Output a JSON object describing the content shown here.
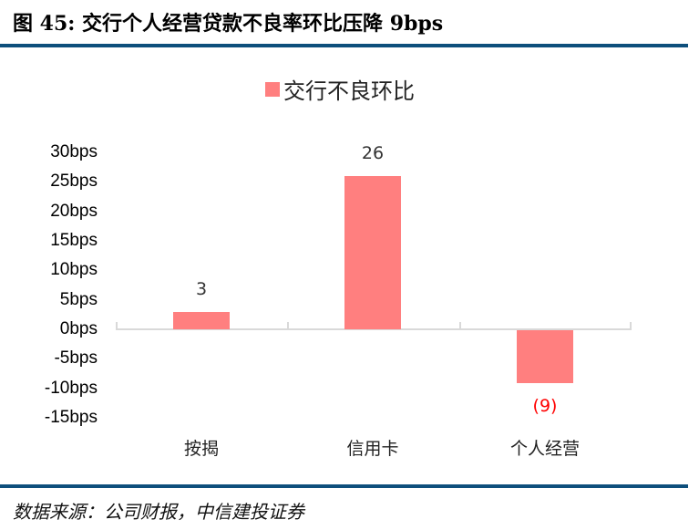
{
  "header": {
    "title": "图 45:  交行个人经营贷款不良率环比压降 9bps"
  },
  "legend": {
    "label": "交行不良环比",
    "color": "#ff7f7f"
  },
  "footer": {
    "source": "数据来源：公司财报，中信建投证券"
  },
  "colors": {
    "bar": "#ff7f7f",
    "negative_label": "#ff0000",
    "rule": "#0e4f7c",
    "axis": "#d9d9d9"
  },
  "chart_data": {
    "type": "bar",
    "title": "交行个人经营贷款不良率环比压降 9bps",
    "xlabel": "",
    "ylabel": "",
    "categories": [
      "按揭",
      "信用卡",
      "个人经营"
    ],
    "series": [
      {
        "name": "交行不良环比",
        "values": [
          3,
          26,
          -9
        ]
      }
    ],
    "data_labels": [
      "3",
      "26",
      "(9)"
    ],
    "y_ticks": [
      "30bps",
      "25bps",
      "20bps",
      "15bps",
      "10bps",
      "5bps",
      "0bps",
      "-5bps",
      "-10bps",
      "-15bps"
    ],
    "ylim": [
      -15,
      30
    ],
    "grid": false,
    "legend_position": "top"
  }
}
